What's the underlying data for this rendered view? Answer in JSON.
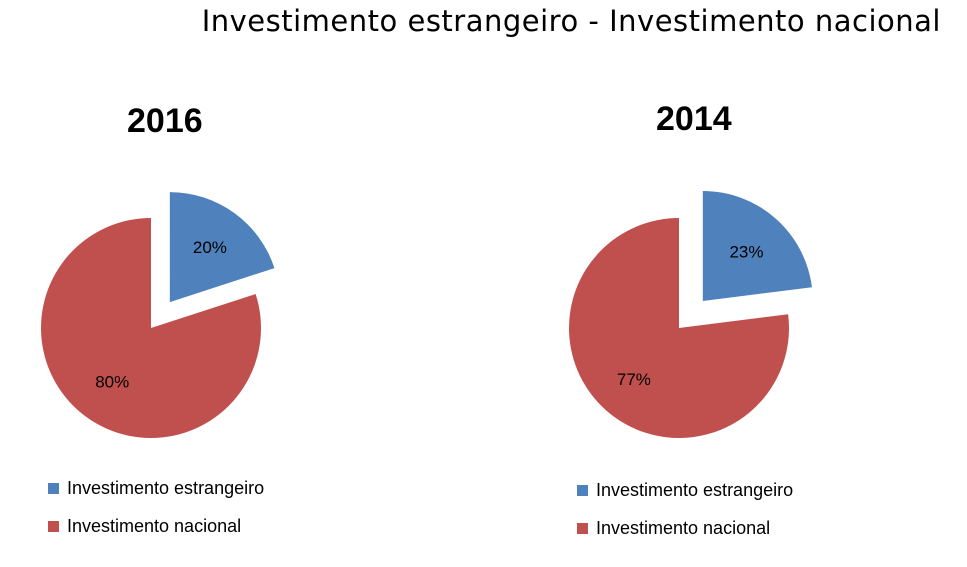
{
  "title": "Investimento estrangeiro - Investimento nacional",
  "chart_data": [
    {
      "type": "pie",
      "title": "2016",
      "categories": [
        "Investimento estrangeiro",
        "Investimento nacional"
      ],
      "values": [
        20,
        80
      ],
      "labels": [
        "20%",
        "80%"
      ],
      "colors": [
        "#4f81bd",
        "#c0504d"
      ],
      "exploded": [
        "Investimento estrangeiro"
      ],
      "legend": "bottom-left"
    },
    {
      "type": "pie",
      "title": "2014",
      "categories": [
        "Investimento estrangeiro",
        "Investimento nacional"
      ],
      "values": [
        23,
        77
      ],
      "labels": [
        "23%",
        "77%"
      ],
      "colors": [
        "#4f81bd",
        "#c0504d"
      ],
      "exploded": [
        "Investimento estrangeiro"
      ],
      "legend": "bottom-left"
    }
  ]
}
